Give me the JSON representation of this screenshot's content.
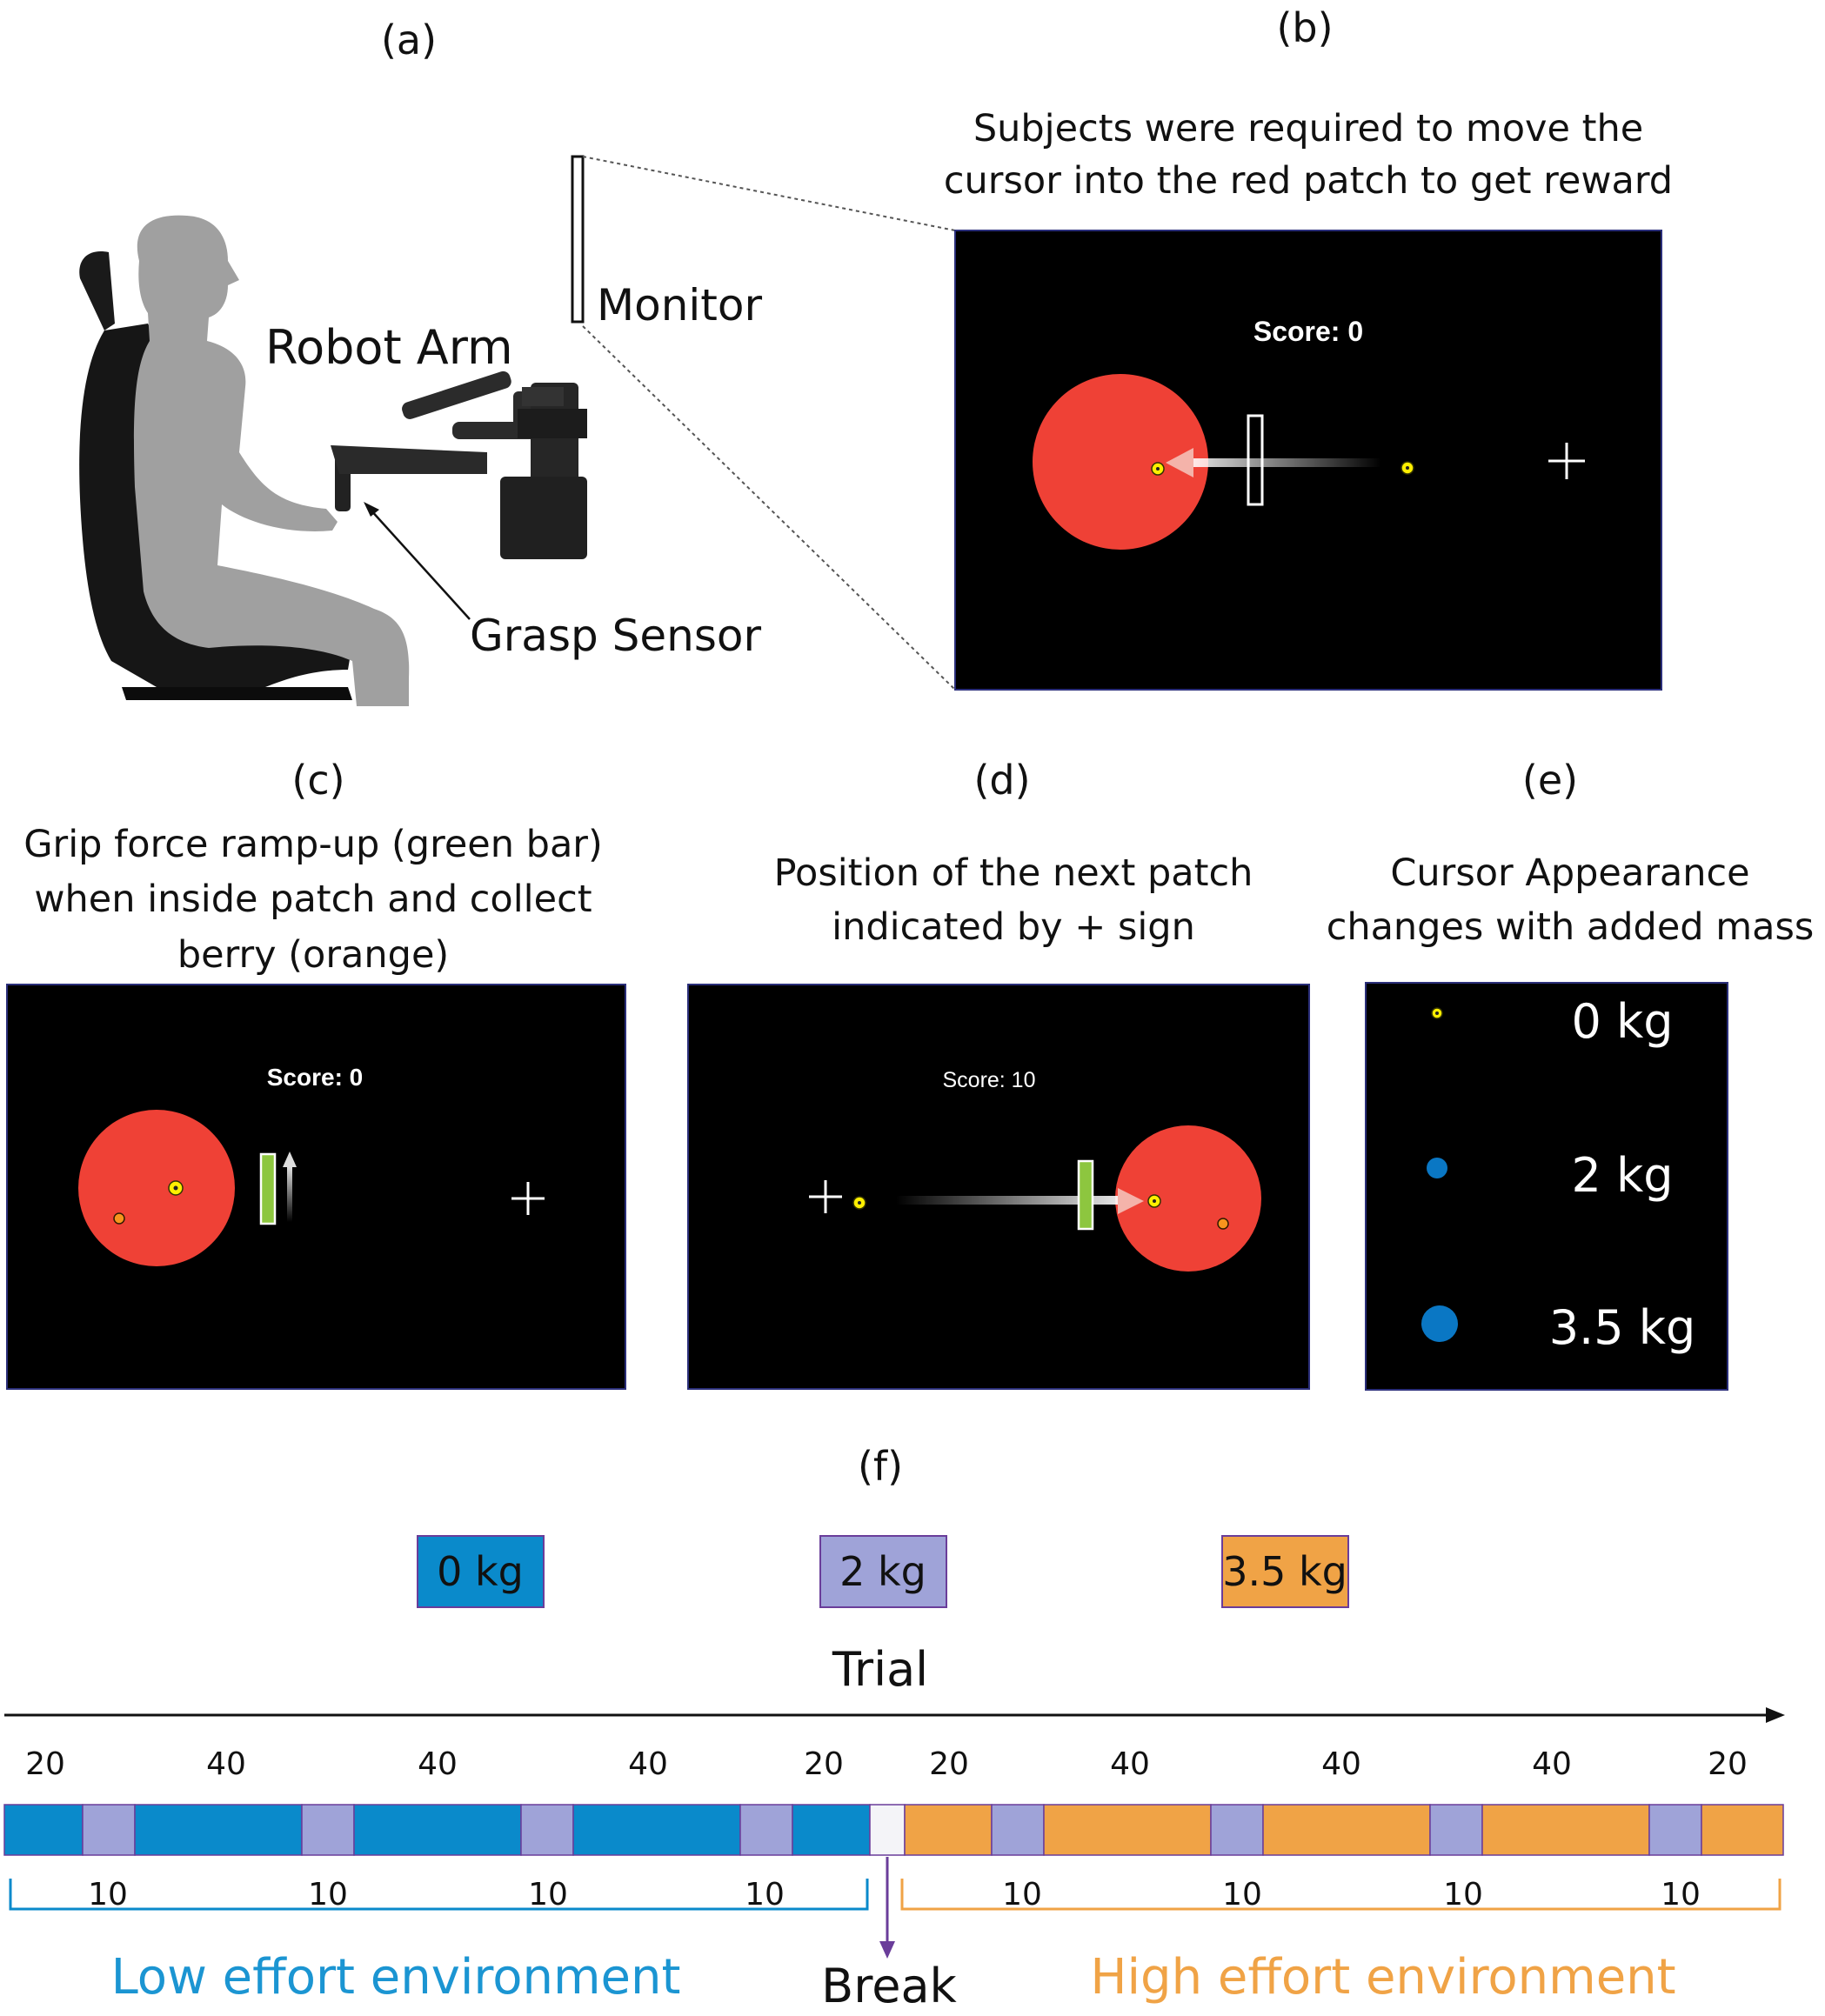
{
  "panels": {
    "a": {
      "label": "(a)",
      "monitor": "Monitor",
      "robot_arm": "Robot Arm",
      "grasp_sensor": "Grasp Sensor"
    },
    "b": {
      "label": "(b)",
      "caption_line1": "Subjects were required to move the",
      "caption_line2": "cursor into the red patch to get reward",
      "score": "Score: 0"
    },
    "c": {
      "label": "(c)",
      "caption_line1": "Grip force ramp-up (green bar)",
      "caption_line2": "when inside patch and collect",
      "caption_line3": "berry (orange)",
      "score": "Score: 0"
    },
    "d": {
      "label": "(d)",
      "caption_line1": "Position of the next patch",
      "caption_line2": "indicated by + sign",
      "score": "Score: 10"
    },
    "e": {
      "label": "(e)",
      "caption_line1": "Cursor Appearance",
      "caption_line2": "changes with added mass",
      "masses": [
        "0 kg",
        "2 kg",
        "3.5 kg"
      ]
    },
    "f": {
      "label": "(f)",
      "legend": [
        {
          "label": "0 kg",
          "color": "#0a8acb"
        },
        {
          "label": "2 kg",
          "color": "#9fa3d8"
        },
        {
          "label": "3.5 kg",
          "color": "#f0a346"
        }
      ],
      "axis_label": "Trial",
      "low_top_counts": [
        "20",
        "40",
        "40",
        "40",
        "20"
      ],
      "high_top_counts": [
        "20",
        "40",
        "40",
        "40",
        "20"
      ],
      "low_bottom_counts": [
        "10",
        "10",
        "10",
        "10"
      ],
      "high_bottom_counts": [
        "10",
        "10",
        "10",
        "10"
      ],
      "low_env": "Low effort environment",
      "break": "Break",
      "high_env": "High effort environment"
    }
  },
  "colors": {
    "patch_red": "#ef4136",
    "cursor_yellow": "#ffef00",
    "cursor_blue": "#0a77c4",
    "grip_green": "#8dc63f",
    "berry_orange": "#f7941d",
    "low_blue": "#0a8acb",
    "high_orange": "#f0a346",
    "break_purple": "#6a3d9a"
  }
}
